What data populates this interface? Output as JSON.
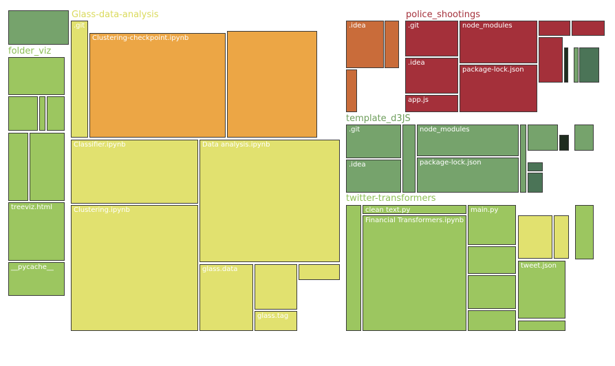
{
  "palette": {
    "yellow": "#e1e16f",
    "orange": "#eca645",
    "lightgreen": "#9cc660",
    "midgreen": "#76a36c",
    "darkgreen": "#4b7457",
    "rust": "#c96c3a",
    "crimson": "#a4303a",
    "nearblack": "#1f2d1f"
  },
  "groups": [
    {
      "name": "Glass-data-analysis",
      "color": "#dada5c"
    },
    {
      "name": "folder_viz",
      "color": "#8dbf56"
    },
    {
      "name": "police_shootings",
      "color": "#a4303a"
    },
    {
      "name": "template_d3JS",
      "color": "#6e9e5c"
    },
    {
      "name": "twitter-transformers",
      "color": "#8dbf56"
    }
  ],
  "files": [
    {
      "group": "Glass-data-analysis",
      "label": ".git",
      "color": "yellow"
    },
    {
      "group": "Glass-data-analysis",
      "label": "Clustering-checkpoint.ipynb",
      "color": "orange"
    },
    {
      "group": "Glass-data-analysis",
      "label": "",
      "color": "orange"
    },
    {
      "group": "Glass-data-analysis",
      "label": "Classifier.ipynb",
      "color": "yellow"
    },
    {
      "group": "Glass-data-analysis",
      "label": "Data analysis.ipynb",
      "color": "yellow"
    },
    {
      "group": "Glass-data-analysis",
      "label": "Clustering.ipynb",
      "color": "yellow"
    },
    {
      "group": "Glass-data-analysis",
      "label": "glass.data",
      "color": "yellow"
    },
    {
      "group": "Glass-data-analysis",
      "label": "",
      "color": "yellow"
    },
    {
      "group": "Glass-data-analysis",
      "label": "",
      "color": "yellow"
    },
    {
      "group": "Glass-data-analysis",
      "label": "glass.tag",
      "color": "yellow"
    },
    {
      "group": "",
      "label": "",
      "color": "midgreen"
    },
    {
      "group": "folder_viz",
      "label": "",
      "color": "lightgreen"
    },
    {
      "group": "folder_viz",
      "label": "",
      "color": "lightgreen"
    },
    {
      "group": "folder_viz",
      "label": "",
      "color": "lightgreen"
    },
    {
      "group": "folder_viz",
      "label": "",
      "color": "lightgreen"
    },
    {
      "group": "folder_viz",
      "label": "",
      "color": "lightgreen"
    },
    {
      "group": "folder_viz",
      "label": "",
      "color": "lightgreen"
    },
    {
      "group": "folder_viz",
      "label": "treeviz.html",
      "color": "lightgreen"
    },
    {
      "group": "folder_viz",
      "label": "__pycache__",
      "color": "lightgreen"
    },
    {
      "group": "police_shootings",
      "label": ".idea",
      "color": "rust"
    },
    {
      "group": "police_shootings",
      "label": "",
      "color": "rust"
    },
    {
      "group": "police_shootings",
      "label": "",
      "color": "rust"
    },
    {
      "group": "police_shootings",
      "label": ".git",
      "color": "crimson"
    },
    {
      "group": "police_shootings",
      "label": "node_modules",
      "color": "crimson"
    },
    {
      "group": "police_shootings",
      "label": ".idea",
      "color": "crimson"
    },
    {
      "group": "police_shootings",
      "label": "package-lock.json",
      "color": "crimson"
    },
    {
      "group": "police_shootings",
      "label": "app.js",
      "color": "crimson"
    },
    {
      "group": "police_shootings",
      "label": "",
      "color": "crimson"
    },
    {
      "group": "police_shootings",
      "label": "",
      "color": "crimson"
    },
    {
      "group": "police_shootings",
      "label": "",
      "color": "crimson"
    },
    {
      "group": "police_shootings",
      "label": "",
      "color": "nearblack"
    },
    {
      "group": "police_shootings",
      "label": "",
      "color": "midgreen"
    },
    {
      "group": "police_shootings",
      "label": "",
      "color": "darkgreen"
    },
    {
      "group": "template_d3JS",
      "label": ".git",
      "color": "midgreen"
    },
    {
      "group": "template_d3JS",
      "label": "",
      "color": "midgreen"
    },
    {
      "group": "template_d3JS",
      "label": "node_modules",
      "color": "midgreen"
    },
    {
      "group": "template_d3JS",
      "label": ".idea",
      "color": "midgreen"
    },
    {
      "group": "template_d3JS",
      "label": "package-lock.json",
      "color": "midgreen"
    },
    {
      "group": "template_d3JS",
      "label": "",
      "color": "midgreen"
    },
    {
      "group": "template_d3JS",
      "label": "",
      "color": "midgreen"
    },
    {
      "group": "template_d3JS",
      "label": "",
      "color": "nearblack"
    },
    {
      "group": "template_d3JS",
      "label": "",
      "color": "midgreen"
    },
    {
      "group": "template_d3JS",
      "label": "",
      "color": "darkgreen"
    },
    {
      "group": "template_d3JS",
      "label": "",
      "color": "darkgreen"
    },
    {
      "group": "twitter-transformers",
      "label": "",
      "color": "lightgreen"
    },
    {
      "group": "twitter-transformers",
      "label": "clean text.py",
      "color": "lightgreen"
    },
    {
      "group": "twitter-transformers",
      "label": "Financial Transformers.ipynb",
      "color": "lightgreen"
    },
    {
      "group": "twitter-transformers",
      "label": "main.py",
      "color": "lightgreen"
    },
    {
      "group": "twitter-transformers",
      "label": "",
      "color": "lightgreen"
    },
    {
      "group": "twitter-transformers",
      "label": "",
      "color": "lightgreen"
    },
    {
      "group": "twitter-transformers",
      "label": "",
      "color": "lightgreen"
    },
    {
      "group": "twitter-transformers",
      "label": "",
      "color": "yellow"
    },
    {
      "group": "twitter-transformers",
      "label": "",
      "color": "yellow"
    },
    {
      "group": "twitter-transformers",
      "label": "tweet.json",
      "color": "lightgreen"
    },
    {
      "group": "twitter-transformers",
      "label": "",
      "color": "lightgreen"
    },
    {
      "group": "twitter-transformers",
      "label": "",
      "color": "lightgreen"
    }
  ]
}
